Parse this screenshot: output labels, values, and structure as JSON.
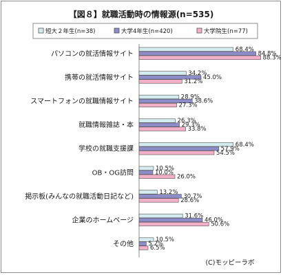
{
  "chart_data": {
    "type": "bar",
    "orientation": "horizontal",
    "title": "【図８】就職活動時の情報源(n=535)",
    "categories": [
      "パソコンの就活情報サイト",
      "携帯の就活情報サイト",
      "スマートフォンの就職情報サイト",
      "就職情報雑誌・本",
      "学校の就職支援課",
      "OB・OG訪問",
      "掲示板(みんなの就職活動日記など)",
      "企業のホームページ",
      "その他"
    ],
    "series": [
      {
        "name": "短大２年生(n=38)",
        "color": "#d4ecef",
        "values": [
          68.4,
          34.2,
          28.9,
          26.3,
          68.4,
          10.5,
          13.2,
          31.6,
          10.5
        ]
      },
      {
        "name": "大学4年生(n=420)",
        "color": "#8c8cc8",
        "values": [
          84.8,
          45.0,
          38.6,
          29.3,
          57.9,
          10.0,
          30.7,
          46.0,
          5.2
        ]
      },
      {
        "name": "大学院生(n=77)",
        "color": "#f2b0c8",
        "values": [
          88.3,
          31.2,
          27.3,
          33.8,
          54.5,
          26.0,
          28.6,
          50.6,
          6.5
        ]
      }
    ],
    "xlim": [
      0,
      100
    ],
    "value_suffix": "%",
    "legend_position": "top",
    "grid": false
  },
  "credit": "(C)モッピーラボ"
}
